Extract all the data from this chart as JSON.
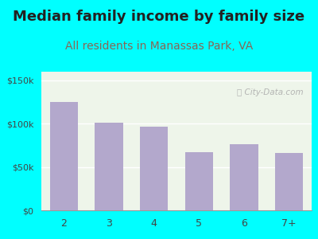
{
  "title": "Median family income by family size",
  "subtitle": "All residents in Manassas Park, VA",
  "categories": [
    "2",
    "3",
    "4",
    "5",
    "6",
    "7+"
  ],
  "values": [
    125000,
    101000,
    97000,
    67000,
    76000,
    66000
  ],
  "bar_color": "#b3a8cc",
  "ylim": [
    0,
    160000
  ],
  "yticks": [
    0,
    50000,
    100000,
    150000
  ],
  "ytick_labels": [
    "$0",
    "$50k",
    "$100k",
    "$150k"
  ],
  "bg_outer": "#00ffff",
  "bg_plot_color": "#eef5e8",
  "watermark": "ⓘ City-Data.com",
  "title_fontsize": 13,
  "subtitle_fontsize": 10,
  "title_color": "#222222",
  "subtitle_color": "#886655"
}
